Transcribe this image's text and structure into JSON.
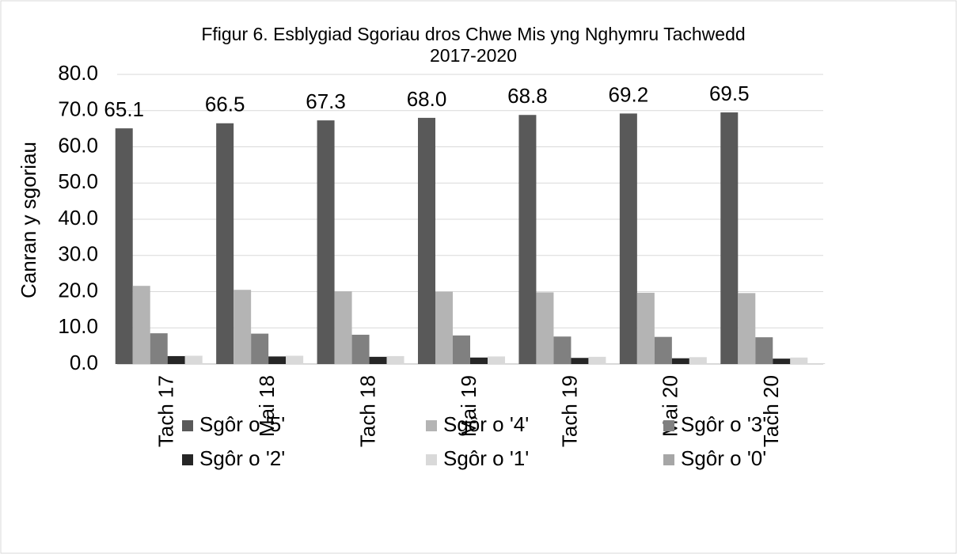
{
  "chart_data": {
    "type": "bar",
    "title": "Ffigur 6. Esblygiad Sgoriau dros Chwe Mis yng Nghymru Tachwedd 2017-2020",
    "ylabel": "Canran y sgoriau",
    "categories": [
      "Tach 17",
      "Mai 18",
      "Tach 18",
      "Mai 19",
      "Tach 19",
      "Mai 20",
      "Tach 20"
    ],
    "series": [
      {
        "name": "Sgôr o '5'",
        "color": "#595959",
        "values": [
          65.1,
          66.5,
          67.3,
          68.0,
          68.8,
          69.2,
          69.5
        ],
        "value_labels": [
          "65.1",
          "66.5",
          "67.3",
          "68.0",
          "68.8",
          "69.2",
          "69.5"
        ]
      },
      {
        "name": "Sgôr o '4'",
        "color": "#b4b4b4",
        "values": [
          21.6,
          20.5,
          20.1,
          20.0,
          19.8,
          19.7,
          19.6
        ]
      },
      {
        "name": "Sgôr o '3'",
        "color": "#808080",
        "values": [
          8.5,
          8.4,
          8.1,
          7.9,
          7.6,
          7.5,
          7.4
        ]
      },
      {
        "name": "Sgôr o '2'",
        "color": "#262626",
        "values": [
          2.2,
          2.1,
          2.0,
          1.8,
          1.7,
          1.6,
          1.5
        ]
      },
      {
        "name": "Sgôr o '1'",
        "color": "#d9d9d9",
        "values": [
          2.3,
          2.3,
          2.2,
          2.1,
          2.0,
          1.9,
          1.8
        ]
      },
      {
        "name": "Sgôr o '0'",
        "color": "#a6a6a6",
        "values": [
          0.1,
          0.1,
          0.1,
          0.1,
          0.1,
          0.1,
          0.1
        ]
      }
    ],
    "ylim": [
      0,
      80
    ],
    "yticks": [
      {
        "value": 0,
        "label": "0.0"
      },
      {
        "value": 10,
        "label": "10.0"
      },
      {
        "value": 20,
        "label": "20.0"
      },
      {
        "value": 30,
        "label": "30.0"
      },
      {
        "value": 40,
        "label": "40.0"
      },
      {
        "value": 50,
        "label": "50.0"
      },
      {
        "value": 60,
        "label": "60.0"
      },
      {
        "value": 70,
        "label": "70.0"
      },
      {
        "value": 80,
        "label": "80.0"
      }
    ],
    "grid": true,
    "legend": "bottom"
  }
}
